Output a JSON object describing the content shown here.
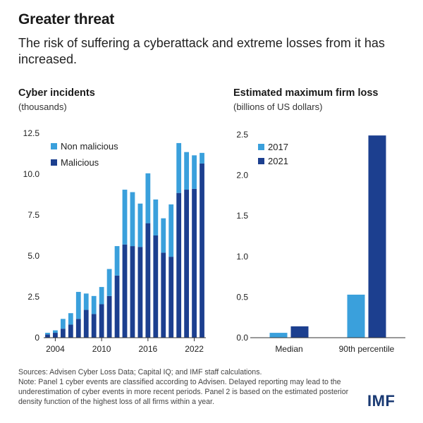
{
  "title": "Greater threat",
  "subtitle": "The risk of suffering a cyberattack and extreme losses from it has increased.",
  "colors": {
    "light": "#3aa0dc",
    "dark": "#1c3f8f",
    "axis": "#333333"
  },
  "notes": {
    "sources": "Sources: Advisen Cyber Loss Data; Capital IQ; and IMF staff calculations.",
    "note": "Note: Panel 1 cyber events are classified according to Advisen. Delayed reporting may lead to the underestimation of cyber events in more recent periods. Panel 2 is based on the estimated posterior density function of the highest loss of all firms within a year."
  },
  "brand": "IMF",
  "chart_data": [
    {
      "type": "bar",
      "stacked": true,
      "title": "Cyber incidents",
      "ylabel": "(thousands)",
      "ylim": [
        0,
        12.5
      ],
      "yticks": [
        "0",
        "2.5",
        "5.0",
        "7.5",
        "10.0",
        "12.5"
      ],
      "x": [
        2003,
        2004,
        2005,
        2006,
        2007,
        2008,
        2009,
        2010,
        2011,
        2012,
        2013,
        2014,
        2015,
        2016,
        2017,
        2018,
        2019,
        2020,
        2021,
        2022,
        2023
      ],
      "xticks": [
        "2004",
        "2010",
        "2016",
        "2022"
      ],
      "legend_position": "top-left",
      "series": [
        {
          "name": "Malicious",
          "color": "#1c3f8f",
          "values": [
            0.2,
            0.3,
            0.55,
            0.8,
            1.15,
            1.7,
            1.45,
            2.05,
            2.55,
            3.8,
            5.7,
            5.6,
            5.55,
            7.0,
            6.25,
            5.2,
            4.95,
            8.85,
            9.05,
            9.1,
            10.65
          ]
        },
        {
          "name": "Non malicious",
          "color": "#3aa0dc",
          "values": [
            0.1,
            0.15,
            0.6,
            0.7,
            1.65,
            1.0,
            1.1,
            1.05,
            1.65,
            1.8,
            3.35,
            3.3,
            2.65,
            3.05,
            2.2,
            2.1,
            3.2,
            3.05,
            2.3,
            2.05,
            0.65
          ]
        }
      ]
    },
    {
      "type": "bar",
      "title": "Estimated maximum firm loss",
      "ylabel": "(billions of US dollars)",
      "ylim": [
        0,
        2.5
      ],
      "yticks": [
        "0.0",
        "0.5",
        "1.0",
        "1.5",
        "2.0",
        "2.5"
      ],
      "categories": [
        "Median",
        "90th percentile"
      ],
      "legend_position": "top-left",
      "series": [
        {
          "name": "2017",
          "color": "#3aa0dc",
          "values": [
            0.06,
            0.53
          ]
        },
        {
          "name": "2021",
          "color": "#1c3f8f",
          "values": [
            0.14,
            2.49
          ]
        }
      ]
    }
  ]
}
